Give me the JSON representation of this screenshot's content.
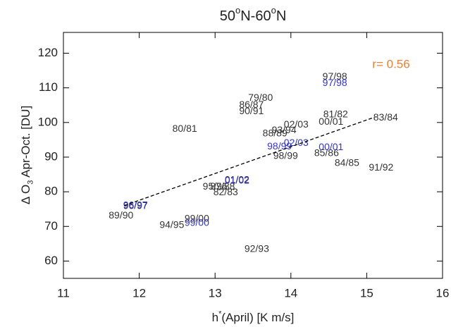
{
  "chart_data": {
    "type": "scatter",
    "title": [
      "50",
      "o",
      "N-60",
      "o",
      "N"
    ],
    "x_label": [
      "h",
      "*",
      "(April)  [K m/s]"
    ],
    "y_label": [
      "Δ O",
      "3",
      " Apr-Oct. [DU]"
    ],
    "xlim": [
      11,
      16
    ],
    "ylim": [
      55,
      126
    ],
    "xticks": [
      11,
      12,
      13,
      14,
      15,
      16
    ],
    "yticks": [
      60,
      70,
      80,
      90,
      100,
      110,
      120
    ],
    "series": [
      {
        "color": "#333333",
        "labels": [
          "97/98",
          "79/80",
          "86/87",
          "90/91",
          "81/82",
          "00/01",
          "83/84",
          "02/03",
          "80/81",
          "93/94",
          "88/89",
          "98/99",
          "85/86",
          "84/85",
          "91/92",
          "95/96",
          "87/88",
          "82/83",
          "01/02",
          "96/97",
          "89/90",
          "99/00",
          "94/95",
          "92/93"
        ],
        "x": [
          14.58,
          13.6,
          13.48,
          13.48,
          14.59,
          14.53,
          15.25,
          14.07,
          12.6,
          13.91,
          13.79,
          13.93,
          14.47,
          14.74,
          15.19,
          13.0,
          13.1,
          13.14,
          13.29,
          11.95,
          11.76,
          12.76,
          12.43,
          13.55
        ],
        "values": [
          113.1,
          107.0,
          105.0,
          103.2,
          102.2,
          100.1,
          101.3,
          99.3,
          98.1,
          97.7,
          96.7,
          90.2,
          91.0,
          88.2,
          86.9,
          81.4,
          81.4,
          79.8,
          83.3,
          75.8,
          73.0,
          72.1,
          70.3,
          63.4
        ]
      },
      {
        "color": "#3333cc",
        "labels": [
          "97/98",
          "02/03",
          "98/99",
          "00/01",
          "01/02",
          "96/97",
          "99/00"
        ],
        "x": [
          14.58,
          14.07,
          13.85,
          14.53,
          13.29,
          11.95,
          12.76
        ],
        "values": [
          111.3,
          94.0,
          93.0,
          92.8,
          83.1,
          76.0,
          70.9
        ]
      }
    ],
    "fit_line": {
      "x": [
        11.8,
        15.1
      ],
      "values": [
        76,
        101.5
      ],
      "color": "#000000"
    },
    "annotation": {
      "text": "r=  0.56",
      "color": "#e8803a"
    }
  }
}
